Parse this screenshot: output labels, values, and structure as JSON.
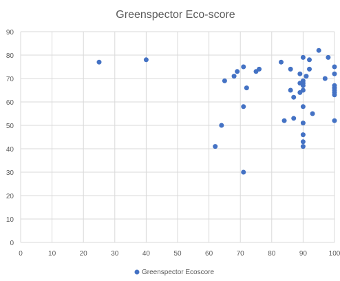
{
  "chart_data": {
    "type": "scatter",
    "title": "Greenspector Eco-score",
    "xlabel": "",
    "ylabel": "",
    "xlim": [
      0,
      100
    ],
    "ylim": [
      0,
      90
    ],
    "xticks": [
      0,
      10,
      20,
      30,
      40,
      50,
      60,
      70,
      80,
      90,
      100
    ],
    "yticks": [
      0,
      10,
      20,
      30,
      40,
      50,
      60,
      70,
      80,
      90
    ],
    "grid": true,
    "legend": "bottom",
    "marker_color": "#4472c4",
    "series": [
      {
        "name": "Greenspector Ecoscore",
        "points": [
          [
            25,
            77
          ],
          [
            40,
            78
          ],
          [
            62,
            41
          ],
          [
            64,
            50
          ],
          [
            65,
            69
          ],
          [
            68,
            71
          ],
          [
            69,
            73
          ],
          [
            71,
            75
          ],
          [
            71,
            58
          ],
          [
            71,
            30
          ],
          [
            72,
            66
          ],
          [
            75,
            73
          ],
          [
            76,
            74
          ],
          [
            83,
            77
          ],
          [
            84,
            52
          ],
          [
            86,
            74
          ],
          [
            86,
            65
          ],
          [
            87,
            62
          ],
          [
            87,
            53
          ],
          [
            89,
            72
          ],
          [
            89,
            68
          ],
          [
            89,
            64
          ],
          [
            90,
            79
          ],
          [
            90,
            69
          ],
          [
            90,
            68
          ],
          [
            90,
            67
          ],
          [
            90,
            65
          ],
          [
            90,
            58
          ],
          [
            90,
            51
          ],
          [
            90,
            46
          ],
          [
            90,
            43
          ],
          [
            90,
            41
          ],
          [
            91,
            71
          ],
          [
            92,
            78
          ],
          [
            92,
            74
          ],
          [
            93,
            55
          ],
          [
            95,
            82
          ],
          [
            97,
            70
          ],
          [
            98,
            79
          ],
          [
            100,
            75
          ],
          [
            100,
            72
          ],
          [
            100,
            67
          ],
          [
            100,
            66
          ],
          [
            100,
            65
          ],
          [
            100,
            64
          ],
          [
            100,
            63
          ],
          [
            100,
            52
          ]
        ]
      }
    ]
  }
}
